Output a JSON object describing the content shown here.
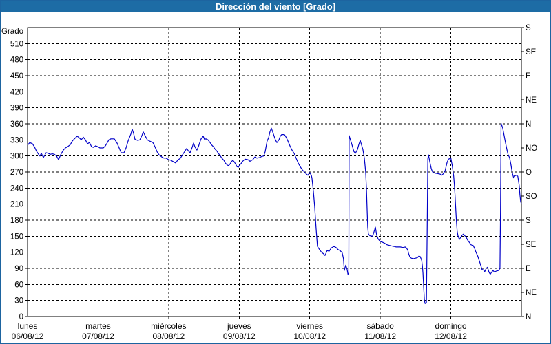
{
  "title_bar": {
    "text": "Dirección del viento [Grado]",
    "bg_color": "#1d6ca5",
    "text_color": "#ffffff"
  },
  "frame_border_color": "#1d64a0",
  "chart_data": {
    "type": "line",
    "title": "Dirección del viento [Grado]",
    "ylabel_left": "Grado",
    "ylim": [
      0,
      540
    ],
    "xlim_days": [
      0,
      7
    ],
    "grid": "dashed",
    "line_color": "#0000c8",
    "y_left_tick_step": 30,
    "y_left_ticks": [
      0,
      30,
      60,
      90,
      120,
      150,
      180,
      210,
      240,
      270,
      300,
      330,
      360,
      390,
      420,
      450,
      480,
      510
    ],
    "y_right_step_deg": 45,
    "y_right_labels": [
      "N",
      "NE",
      "E",
      "SE",
      "S",
      "SO",
      "O",
      "NO",
      "N",
      "NE",
      "E",
      "SE",
      "S"
    ],
    "x_days": [
      {
        "name": "lunes",
        "date": "06/08/12"
      },
      {
        "name": "martes",
        "date": "07/08/12"
      },
      {
        "name": "miércoles",
        "date": "08/08/12"
      },
      {
        "name": "jueves",
        "date": "09/08/12"
      },
      {
        "name": "viernes",
        "date": "10/08/12"
      },
      {
        "name": "sábado",
        "date": "11/08/12"
      },
      {
        "name": "domingo",
        "date": "12/08/12"
      }
    ],
    "series": [
      {
        "name": "Dirección del viento [Grado]",
        "unit": "grados",
        "points": [
          [
            0,
            320
          ],
          [
            0.03,
            325
          ],
          [
            0.068,
            323
          ],
          [
            0.098,
            317
          ],
          [
            0.127,
            309
          ],
          [
            0.156,
            303
          ],
          [
            0.176,
            300
          ],
          [
            0.195,
            305
          ],
          [
            0.225,
            297
          ],
          [
            0.264,
            306
          ],
          [
            0.293,
            305
          ],
          [
            0.322,
            303
          ],
          [
            0.351,
            304
          ],
          [
            0.381,
            303
          ],
          [
            0.41,
            300
          ],
          [
            0.439,
            293
          ],
          [
            0.469,
            302
          ],
          [
            0.508,
            311
          ],
          [
            0.537,
            315
          ],
          [
            0.566,
            317
          ],
          [
            0.605,
            321
          ],
          [
            0.635,
            328
          ],
          [
            0.664,
            332
          ],
          [
            0.703,
            337
          ],
          [
            0.732,
            334
          ],
          [
            0.761,
            330
          ],
          [
            0.791,
            335
          ],
          [
            0.82,
            330
          ],
          [
            0.849,
            323
          ],
          [
            0.879,
            325
          ],
          [
            0.908,
            317
          ],
          [
            0.937,
            316
          ],
          [
            0.966,
            319
          ],
          [
            1,
            317
          ],
          [
            1.025,
            315
          ],
          [
            1.074,
            315
          ],
          [
            1.103,
            319
          ],
          [
            1.132,
            325
          ],
          [
            1.152,
            330
          ],
          [
            1.181,
            332
          ],
          [
            1.23,
            332
          ],
          [
            1.269,
            324
          ],
          [
            1.298,
            315
          ],
          [
            1.328,
            306
          ],
          [
            1.367,
            306
          ],
          [
            1.396,
            315
          ],
          [
            1.425,
            328
          ],
          [
            1.464,
            341
          ],
          [
            1.484,
            350
          ],
          [
            1.503,
            342
          ],
          [
            1.523,
            331
          ],
          [
            1.562,
            329
          ],
          [
            1.591,
            330
          ],
          [
            1.621,
            338
          ],
          [
            1.64,
            345
          ],
          [
            1.669,
            337
          ],
          [
            1.699,
            330
          ],
          [
            1.728,
            328
          ],
          [
            1.777,
            325
          ],
          [
            1.806,
            317
          ],
          [
            1.835,
            308
          ],
          [
            1.865,
            302
          ],
          [
            1.904,
            298
          ],
          [
            1.933,
            296
          ],
          [
            1.962,
            296
          ],
          [
            2,
            293
          ],
          [
            2.03,
            292
          ],
          [
            2.07,
            289
          ],
          [
            2.099,
            287
          ],
          [
            2.128,
            292
          ],
          [
            2.167,
            296
          ],
          [
            2.196,
            302
          ],
          [
            2.226,
            308
          ],
          [
            2.255,
            314
          ],
          [
            2.284,
            309
          ],
          [
            2.304,
            306
          ],
          [
            2.333,
            316
          ],
          [
            2.353,
            324
          ],
          [
            2.372,
            317
          ],
          [
            2.401,
            311
          ],
          [
            2.421,
            317
          ],
          [
            2.441,
            325
          ],
          [
            2.46,
            332
          ],
          [
            2.49,
            337
          ],
          [
            2.509,
            331
          ],
          [
            2.529,
            332
          ],
          [
            2.558,
            330
          ],
          [
            2.587,
            325
          ],
          [
            2.607,
            321
          ],
          [
            2.636,
            317
          ],
          [
            2.656,
            313
          ],
          [
            2.685,
            309
          ],
          [
            2.704,
            305
          ],
          [
            2.734,
            300
          ],
          [
            2.753,
            296
          ],
          [
            2.782,
            292
          ],
          [
            2.802,
            287
          ],
          [
            2.831,
            283
          ],
          [
            2.851,
            282
          ],
          [
            2.87,
            285
          ],
          [
            2.89,
            289
          ],
          [
            2.909,
            292
          ],
          [
            2.929,
            289
          ],
          [
            2.949,
            285
          ],
          [
            2.968,
            280
          ],
          [
            2.988,
            279
          ],
          [
            3.007,
            283
          ],
          [
            3.027,
            286
          ],
          [
            3.056,
            291
          ],
          [
            3.085,
            294
          ],
          [
            3.124,
            293
          ],
          [
            3.153,
            290
          ],
          [
            3.192,
            293
          ],
          [
            3.222,
            298
          ],
          [
            3.251,
            296
          ],
          [
            3.29,
            297
          ],
          [
            3.319,
            299
          ],
          [
            3.349,
            300
          ],
          [
            3.368,
            308
          ],
          [
            3.378,
            315
          ],
          [
            3.397,
            328
          ],
          [
            3.417,
            334
          ],
          [
            3.436,
            345
          ],
          [
            3.456,
            352
          ],
          [
            3.475,
            345
          ],
          [
            3.495,
            337
          ],
          [
            3.514,
            330
          ],
          [
            3.534,
            325
          ],
          [
            3.563,
            330
          ],
          [
            3.583,
            337
          ],
          [
            3.602,
            340
          ],
          [
            3.641,
            340
          ],
          [
            3.67,
            334
          ],
          [
            3.69,
            328
          ],
          [
            3.719,
            319
          ],
          [
            3.748,
            311
          ],
          [
            3.778,
            305
          ],
          [
            3.807,
            296
          ],
          [
            3.836,
            287
          ],
          [
            3.865,
            280
          ],
          [
            3.895,
            274
          ],
          [
            3.924,
            270
          ],
          [
            3.953,
            266
          ],
          [
            3.973,
            264
          ],
          [
            4,
            269
          ],
          [
            4.022,
            264
          ],
          [
            4.031,
            259
          ],
          [
            4.051,
            235
          ],
          [
            4.07,
            205
          ],
          [
            4.09,
            165
          ],
          [
            4.109,
            131
          ],
          [
            4.139,
            125
          ],
          [
            4.168,
            120
          ],
          [
            4.197,
            117
          ],
          [
            4.217,
            114
          ],
          [
            4.246,
            123
          ],
          [
            4.275,
            122
          ],
          [
            4.304,
            128
          ],
          [
            4.343,
            131
          ],
          [
            4.373,
            129
          ],
          [
            4.402,
            125
          ],
          [
            4.431,
            123
          ],
          [
            4.46,
            119
          ],
          [
            4.478,
            108
          ],
          [
            4.49,
            86
          ],
          [
            4.51,
            96
          ],
          [
            4.53,
            88
          ],
          [
            4.542,
            79
          ],
          [
            4.553,
            81
          ],
          [
            4.558,
            338
          ],
          [
            4.598,
            321
          ],
          [
            4.627,
            308
          ],
          [
            4.647,
            305
          ],
          [
            4.676,
            312
          ],
          [
            4.695,
            321
          ],
          [
            4.715,
            329
          ],
          [
            4.754,
            312
          ],
          [
            4.774,
            296
          ],
          [
            4.793,
            270
          ],
          [
            4.803,
            240
          ],
          [
            4.813,
            200
          ],
          [
            4.822,
            167
          ],
          [
            4.832,
            154
          ],
          [
            4.852,
            151
          ],
          [
            4.891,
            150
          ],
          [
            4.92,
            162
          ],
          [
            4.93,
            167
          ],
          [
            4.949,
            152
          ],
          [
            4.969,
            145
          ],
          [
            5,
            140
          ],
          [
            5.029,
            139
          ],
          [
            5.059,
            137
          ],
          [
            5.098,
            134
          ],
          [
            5.127,
            133
          ],
          [
            5.156,
            132
          ],
          [
            5.195,
            131
          ],
          [
            5.225,
            130
          ],
          [
            5.283,
            130
          ],
          [
            5.322,
            129
          ],
          [
            5.352,
            130
          ],
          [
            5.371,
            128
          ],
          [
            5.391,
            124
          ],
          [
            5.4,
            118
          ],
          [
            5.42,
            111
          ],
          [
            5.44,
            109
          ],
          [
            5.469,
            108
          ],
          [
            5.498,
            109
          ],
          [
            5.527,
            110
          ],
          [
            5.547,
            113
          ],
          [
            5.566,
            112
          ],
          [
            5.586,
            105
          ],
          [
            5.596,
            95
          ],
          [
            5.605,
            81
          ],
          [
            5.615,
            55
          ],
          [
            5.625,
            30
          ],
          [
            5.635,
            24
          ],
          [
            5.654,
            26
          ],
          [
            5.664,
            160
          ],
          [
            5.674,
            295
          ],
          [
            5.683,
            302
          ],
          [
            5.703,
            288
          ],
          [
            5.723,
            276
          ],
          [
            5.742,
            270
          ],
          [
            5.771,
            268
          ],
          [
            5.81,
            267
          ],
          [
            5.849,
            266
          ],
          [
            5.869,
            264
          ],
          [
            5.889,
            266
          ],
          [
            5.918,
            272
          ],
          [
            5.947,
            288
          ],
          [
            5.967,
            294
          ],
          [
            6,
            296
          ],
          [
            6.02,
            282
          ],
          [
            6.04,
            262
          ],
          [
            6.05,
            246
          ],
          [
            6.059,
            228
          ],
          [
            6.069,
            203
          ],
          [
            6.079,
            178
          ],
          [
            6.089,
            160
          ],
          [
            6.101,
            151
          ],
          [
            6.12,
            144
          ],
          [
            6.14,
            148
          ],
          [
            6.159,
            152
          ],
          [
            6.179,
            154
          ],
          [
            6.198,
            151
          ],
          [
            6.218,
            148
          ],
          [
            6.237,
            143
          ],
          [
            6.266,
            138
          ],
          [
            6.286,
            134
          ],
          [
            6.315,
            133
          ],
          [
            6.335,
            128
          ],
          [
            6.354,
            121
          ],
          [
            6.384,
            112
          ],
          [
            6.413,
            100
          ],
          [
            6.442,
            88
          ],
          [
            6.462,
            87
          ],
          [
            6.481,
            84
          ],
          [
            6.501,
            90
          ],
          [
            6.52,
            92
          ],
          [
            6.54,
            83
          ],
          [
            6.559,
            79
          ],
          [
            6.579,
            83
          ],
          [
            6.598,
            86
          ],
          [
            6.618,
            83
          ],
          [
            6.647,
            85
          ],
          [
            6.677,
            86
          ],
          [
            6.696,
            90
          ],
          [
            6.704,
            200
          ],
          [
            6.712,
            361
          ],
          [
            6.735,
            352
          ],
          [
            6.754,
            339
          ],
          [
            6.774,
            325
          ],
          [
            6.793,
            313
          ],
          [
            6.813,
            302
          ],
          [
            6.832,
            297
          ],
          [
            6.852,
            284
          ],
          [
            6.871,
            268
          ],
          [
            6.891,
            259
          ],
          [
            6.91,
            263
          ],
          [
            6.93,
            264
          ],
          [
            6.949,
            262
          ],
          [
            6.969,
            245
          ],
          [
            6.979,
            228
          ],
          [
            6.989,
            215
          ],
          [
            6.998,
            211
          ]
        ]
      }
    ]
  }
}
